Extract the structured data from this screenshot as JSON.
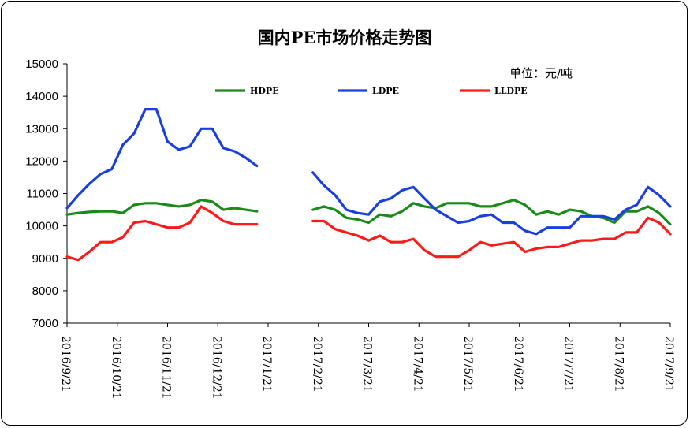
{
  "chart_data": {
    "type": "line",
    "title": "国内PE市场价格走势图",
    "unit_label": "单位：元/吨",
    "ylim": [
      7000,
      15000
    ],
    "yticks": [
      7000,
      8000,
      9000,
      10000,
      11000,
      12000,
      13000,
      14000,
      15000
    ],
    "x_tick_labels": [
      "2016/9/21",
      "2016/10/21",
      "2016/11/21",
      "2016/12/21",
      "2017/1/21",
      "2017/2/21",
      "2017/3/21",
      "2017/4/21",
      "2017/5/21",
      "2017/6/21",
      "2017/7/21",
      "2017/8/21",
      "2017/9/21"
    ],
    "grid": false,
    "legend": "top",
    "series": [
      {
        "name": "HDPE",
        "color": "#1a8a1a",
        "values": [
          10350,
          10400,
          10430,
          10450,
          10450,
          10400,
          10650,
          10700,
          10700,
          10650,
          10600,
          10650,
          10800,
          10750,
          10500,
          10550,
          10500,
          10450,
          null,
          null,
          null,
          null,
          10500,
          10600,
          10500,
          10250,
          10200,
          10100,
          10350,
          10300,
          10450,
          10700,
          10600,
          10550,
          10700,
          10700,
          10700,
          10600,
          10600,
          10700,
          10800,
          10650,
          10350,
          10450,
          10350,
          10500,
          10450,
          10300,
          10250,
          10100,
          10450,
          10450,
          10600,
          10400,
          10050
        ]
      },
      {
        "name": "LDPE",
        "color": "#1a3fe0",
        "values": [
          10550,
          10950,
          11300,
          11600,
          11750,
          12500,
          12850,
          13600,
          13600,
          12600,
          12350,
          12450,
          13000,
          13000,
          12400,
          12300,
          12100,
          11850,
          null,
          null,
          null,
          null,
          11650,
          11250,
          10950,
          10500,
          10400,
          10350,
          10750,
          10850,
          11100,
          11200,
          10850,
          10500,
          10300,
          10100,
          10150,
          10300,
          10350,
          10100,
          10100,
          9850,
          9750,
          9950,
          9950,
          9950,
          10300,
          10300,
          10300,
          10200,
          10500,
          10650,
          11200,
          10950,
          10600
        ]
      },
      {
        "name": "LLDPE",
        "color": "#ff1a1a",
        "values": [
          9050,
          8950,
          9200,
          9500,
          9500,
          9650,
          10100,
          10150,
          10050,
          9950,
          9950,
          10100,
          10600,
          10400,
          10150,
          10050,
          10050,
          10050,
          null,
          null,
          null,
          null,
          10150,
          10150,
          9900,
          9800,
          9700,
          9550,
          9700,
          9500,
          9500,
          9600,
          9250,
          9050,
          9050,
          9050,
          9250,
          9500,
          9400,
          9450,
          9500,
          9200,
          9300,
          9350,
          9350,
          9450,
          9550,
          9550,
          9600,
          9600,
          9800,
          9800,
          10250,
          10100,
          9750
        ]
      }
    ]
  }
}
